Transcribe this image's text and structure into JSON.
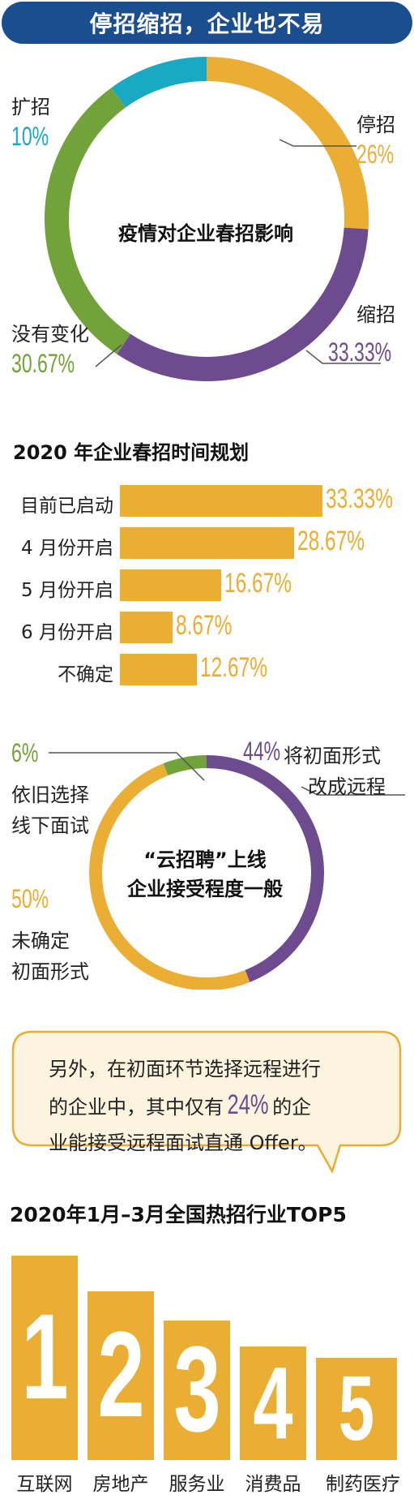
{
  "banner": {
    "title": "停招缩招，企业也不易"
  },
  "donut1": {
    "center": "疫情对企业春招影响",
    "segments": [
      {
        "name": "停招",
        "value": 26,
        "label": "26%",
        "color": "#e9ae33"
      },
      {
        "name": "缩招",
        "value": 33.33,
        "label": "33.33%",
        "color": "#6d4b8e"
      },
      {
        "name": "没有变化",
        "value": 30.67,
        "label": "30.67%",
        "color": "#72a23a"
      },
      {
        "name": "扩招",
        "value": 10,
        "label": "10%",
        "color": "#1aa9c2"
      }
    ]
  },
  "bars": {
    "title": "2020 年企业春招时间规划",
    "items": [
      {
        "name": "目前已启动",
        "value": 33.33,
        "label": "33.33%"
      },
      {
        "name": "4 月份开启",
        "value": 28.67,
        "label": "28.67%"
      },
      {
        "name": "5 月份开启",
        "value": 16.67,
        "label": "16.67%"
      },
      {
        "name": "6 月份开启",
        "value": 8.67,
        "label": "8.67%"
      },
      {
        "name": "不确定",
        "value": 12.67,
        "label": "12.67%"
      }
    ]
  },
  "donut2": {
    "center_line1": "“云招聘”上线",
    "center_line2": "企业接受程度一般",
    "segments": [
      {
        "value": 44,
        "label": "44%",
        "text1": "将初面形式",
        "text2": "改成远程",
        "color": "#6d4b8e"
      },
      {
        "value": 50,
        "label": "50%",
        "text1": "未确定",
        "text2": "初面形式",
        "color": "#e9ae33"
      },
      {
        "value": 6,
        "label": "6%",
        "text1": "依旧选择",
        "text2": "线下面试",
        "color": "#72a23a"
      }
    ]
  },
  "note": {
    "line1": "另外，在初面环节选择远程进行",
    "line2_pre": "的企业中，其中仅有",
    "highlight": "24%",
    "line2_post": "的企",
    "line3": "业能接受远程面试直通 Offer。"
  },
  "top5": {
    "title": "2020年1月–3月全国热招行业TOP5",
    "items": [
      {
        "rank": "1",
        "name": "互联网"
      },
      {
        "rank": "2",
        "name": "房地产"
      },
      {
        "rank": "3",
        "name": "服务业"
      },
      {
        "rank": "4",
        "name": "消费品"
      },
      {
        "rank": "5",
        "name": "制药医疗"
      }
    ]
  },
  "chart_data": [
    {
      "type": "pie",
      "title": "疫情对企业春招影响",
      "categories": [
        "停招",
        "缩招",
        "没有变化",
        "扩招"
      ],
      "values": [
        26,
        33.33,
        30.67,
        10
      ]
    },
    {
      "type": "bar",
      "title": "2020 年企业春招时间规划",
      "categories": [
        "目前已启动",
        "4 月份开启",
        "5 月份开启",
        "6 月份开启",
        "不确定"
      ],
      "values": [
        33.33,
        28.67,
        16.67,
        8.67,
        12.67
      ]
    },
    {
      "type": "pie",
      "title": "“云招聘”上线 企业接受程度一般",
      "categories": [
        "将初面形式改成远程",
        "未确定初面形式",
        "依旧选择线下面试"
      ],
      "values": [
        44,
        50,
        6
      ]
    }
  ]
}
